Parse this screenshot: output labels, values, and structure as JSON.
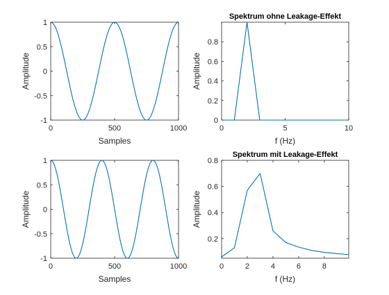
{
  "figure": {
    "background": "#ffffff",
    "line_color": "#0072BD",
    "axis_color": "#262626"
  },
  "chart_data": [
    {
      "type": "line",
      "title": "",
      "xlabel": "Samples",
      "ylabel": "Amplitude",
      "xlim": [
        0,
        1000
      ],
      "ylim": [
        -1,
        1
      ],
      "xticks": [
        0,
        500,
        1000
      ],
      "yticks": [
        -1,
        -0.5,
        0,
        0.5,
        1
      ],
      "xtick_labels": [
        "0",
        "500",
        "1000"
      ],
      "ytick_labels": [
        "-1",
        "-0.5",
        "0",
        "0.5",
        "1"
      ],
      "function": "cos(2*pi*x/period)",
      "period_samples": 500,
      "grid": false
    },
    {
      "type": "line",
      "title": "Spektrum ohne Leakage-Effekt",
      "xlabel": "f (Hz)",
      "ylabel": "Amplitude",
      "xlim": [
        0,
        10
      ],
      "ylim": [
        0,
        1
      ],
      "xticks": [
        0,
        5,
        10
      ],
      "yticks": [
        0,
        0.2,
        0.4,
        0.6,
        0.8
      ],
      "xtick_labels": [
        "0",
        "5",
        "10"
      ],
      "ytick_labels": [
        "0",
        "0.2",
        "0.4",
        "0.6",
        "0.8"
      ],
      "x": [
        0,
        1,
        2,
        3,
        4,
        5,
        6,
        7,
        8,
        9,
        10
      ],
      "y": [
        0,
        0,
        1,
        0,
        0,
        0,
        0,
        0,
        0,
        0,
        0
      ],
      "grid": false
    },
    {
      "type": "line",
      "title": "",
      "xlabel": "Samples",
      "ylabel": "Amplitude",
      "xlim": [
        0,
        1000
      ],
      "ylim": [
        -1,
        1
      ],
      "xticks": [
        0,
        500,
        1000
      ],
      "yticks": [
        -1,
        -0.5,
        0,
        0.5,
        1
      ],
      "xtick_labels": [
        "0",
        "500",
        "1000"
      ],
      "ytick_labels": [
        "-1",
        "-0.5",
        "0",
        "0.5",
        "1"
      ],
      "function": "cos(2*pi*x/period)",
      "period_samples": 400,
      "grid": false
    },
    {
      "type": "line",
      "title": "Spektrum mit Leakage-Effekt",
      "xlabel": "f (Hz)",
      "ylabel": "Amplitude",
      "xlim": [
        0,
        9.9
      ],
      "ylim": [
        0.05,
        0.8
      ],
      "xticks": [
        0,
        2,
        4,
        6,
        8
      ],
      "yticks": [
        0.2,
        0.4,
        0.6,
        0.8
      ],
      "xtick_labels": [
        "0",
        "2",
        "4",
        "6",
        "8"
      ],
      "ytick_labels": [
        "0.2",
        "0.4",
        "0.6",
        "0.8"
      ],
      "x": [
        0,
        1,
        2,
        3,
        4,
        5,
        6,
        7,
        8,
        9,
        9.9
      ],
      "y": [
        0.06,
        0.13,
        0.57,
        0.7,
        0.26,
        0.17,
        0.135,
        0.11,
        0.095,
        0.085,
        0.078
      ],
      "grid": false
    }
  ]
}
